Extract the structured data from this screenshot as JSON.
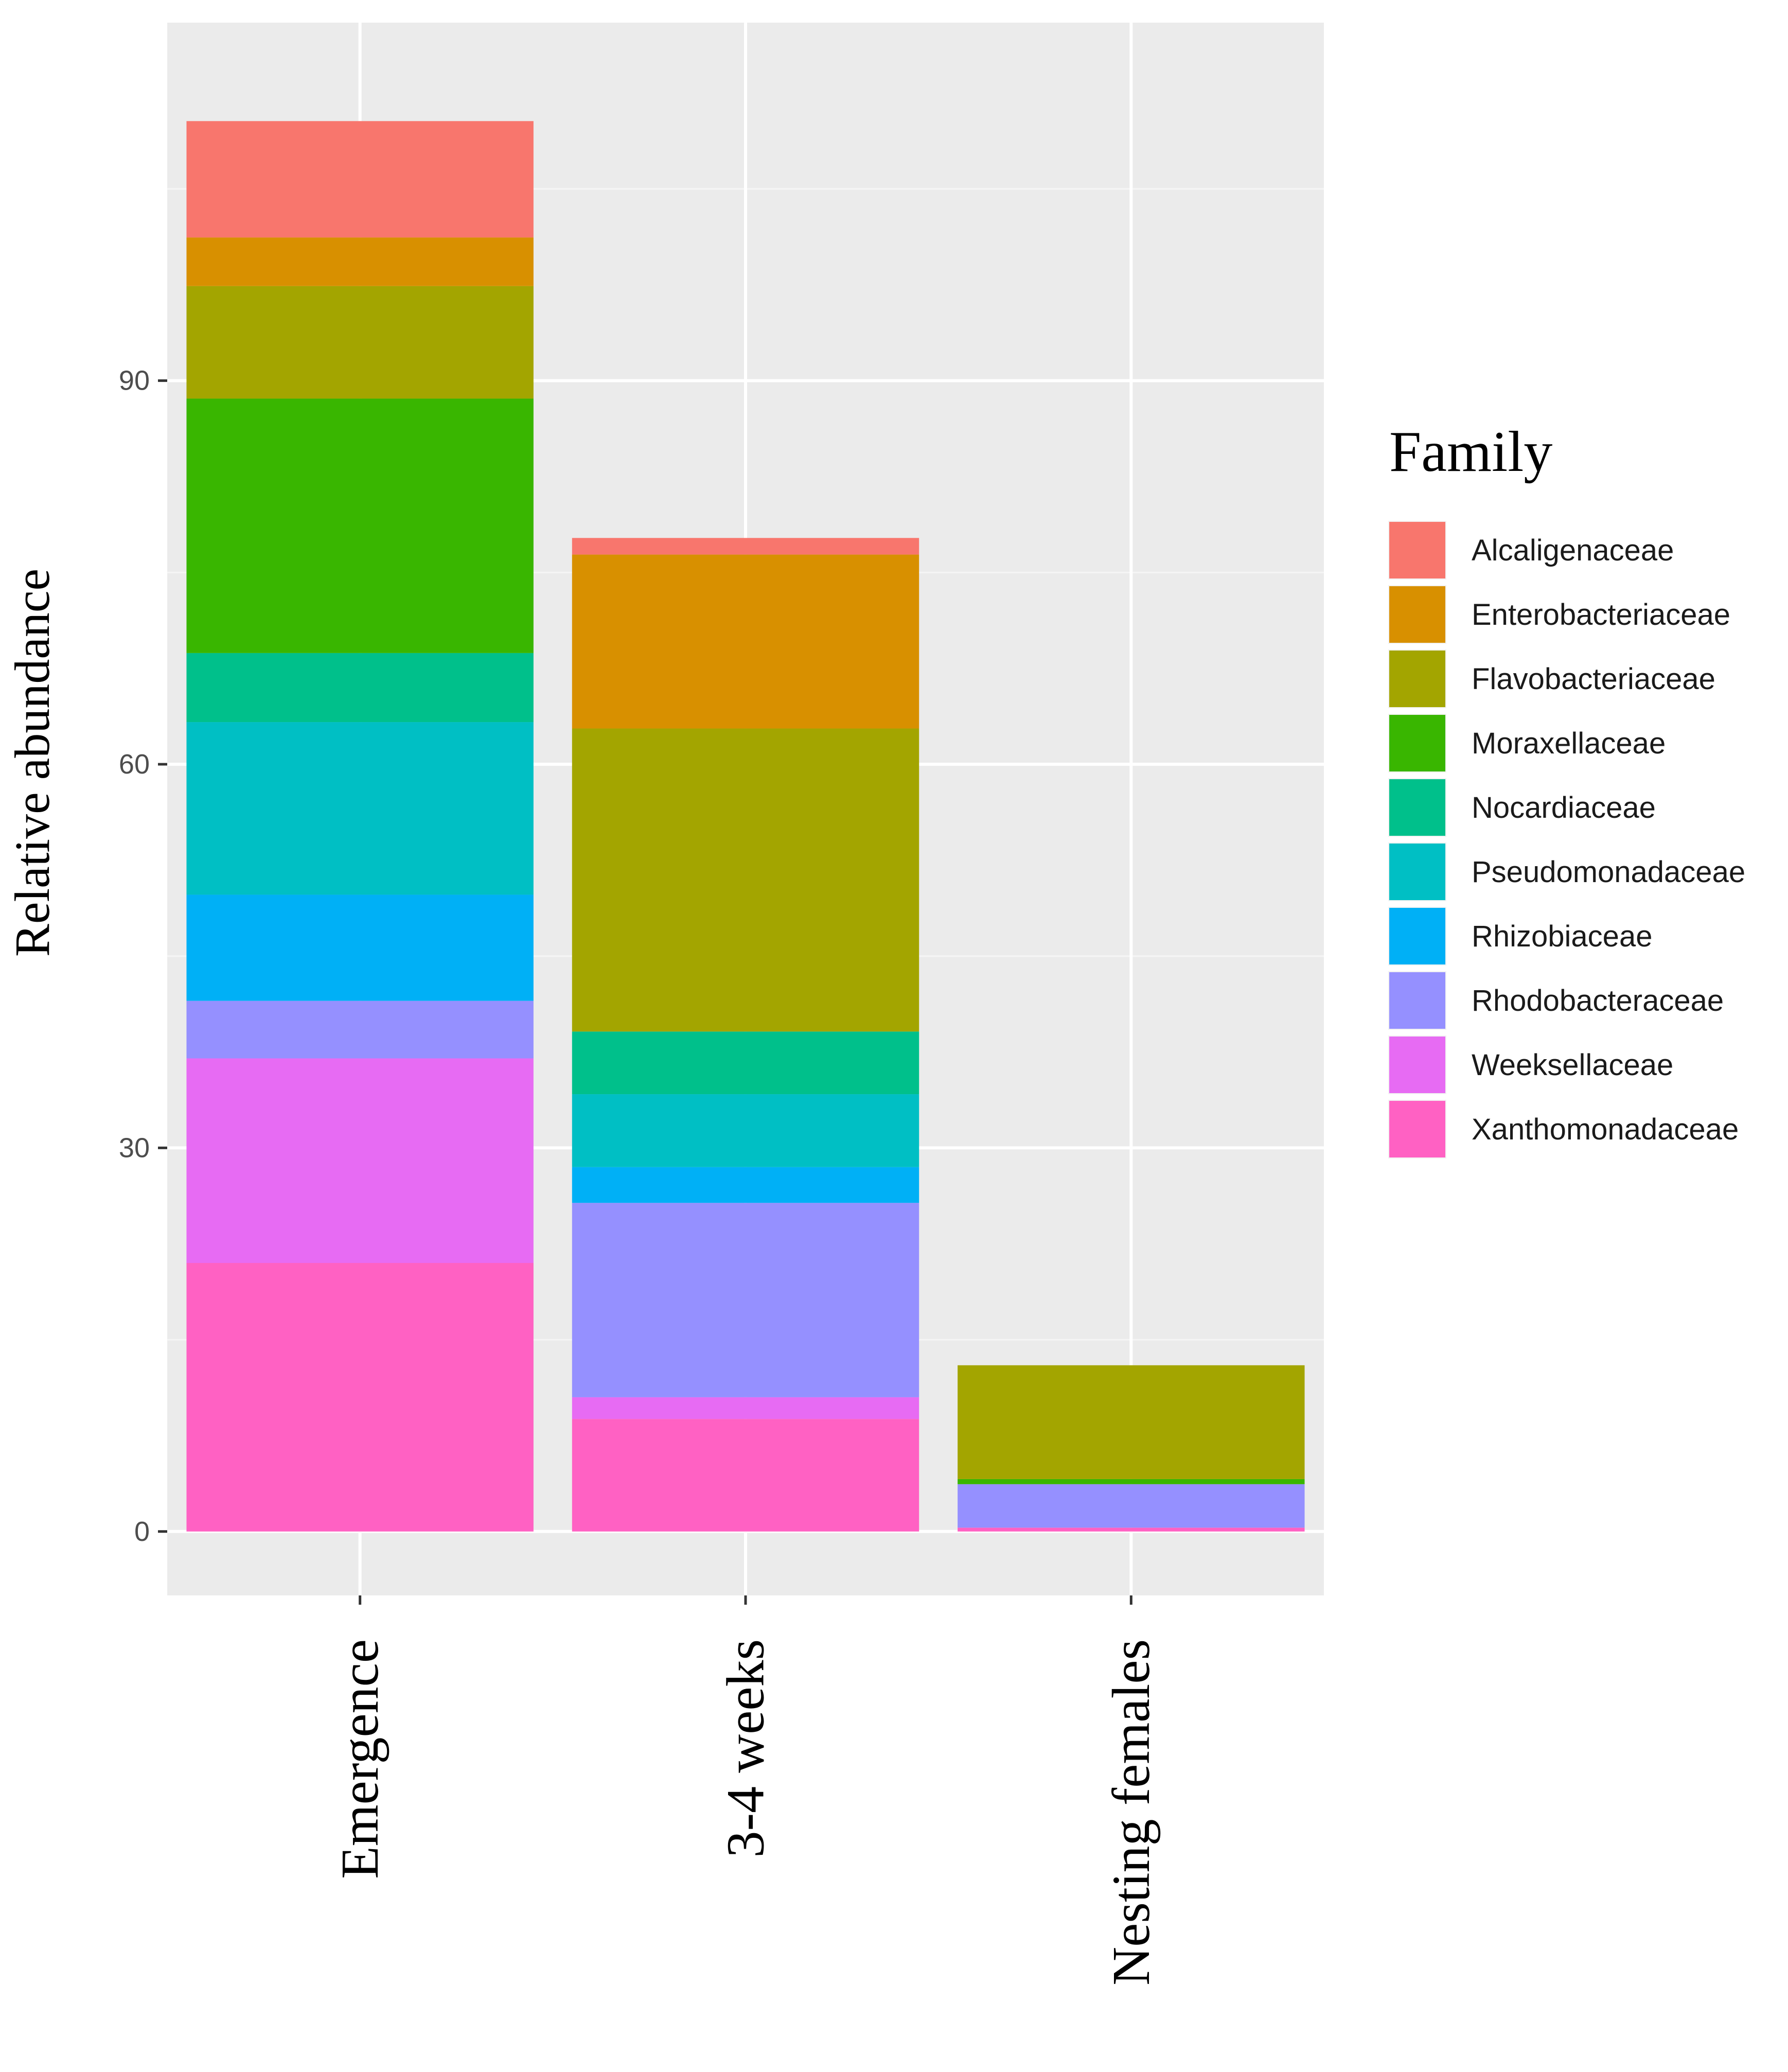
{
  "chart_data": {
    "type": "bar",
    "stacked": true,
    "title": "",
    "xlabel": "",
    "ylabel": "Relative abundance",
    "ylim": [
      -5,
      118
    ],
    "yticks": [
      0,
      30,
      60,
      90
    ],
    "ytick_labels": [
      "0",
      "30",
      "60",
      "90"
    ],
    "grid": true,
    "legend_position": "right",
    "categories": [
      "Emergence",
      "3-4 weeks",
      "Nesting females"
    ],
    "legend": {
      "title": "Family"
    },
    "series": [
      {
        "name": "Xanthomonadaceae",
        "color": "#FF61C3",
        "values": [
          21.0,
          8.8,
          0.3
        ]
      },
      {
        "name": "Weeksellaceae",
        "color": "#E76BF3",
        "values": [
          16.0,
          1.7,
          0.0
        ]
      },
      {
        "name": "Rhodobacteraceae",
        "color": "#9590FF",
        "values": [
          4.5,
          15.2,
          3.4
        ]
      },
      {
        "name": "Rhizobiaceae",
        "color": "#00B0F6",
        "values": [
          8.3,
          2.8,
          0.0
        ]
      },
      {
        "name": "Pseudomonadaceae",
        "color": "#00BFC4",
        "values": [
          13.5,
          5.7,
          0.0
        ]
      },
      {
        "name": "Nocardiaceae",
        "color": "#00C08B",
        "values": [
          5.4,
          4.9,
          0.0
        ]
      },
      {
        "name": "Moraxellaceae",
        "color": "#39B600",
        "values": [
          19.9,
          0.0,
          0.4
        ]
      },
      {
        "name": "Flavobacteriaceae",
        "color": "#A3A500",
        "values": [
          8.8,
          23.7,
          8.9
        ]
      },
      {
        "name": "Enterobacteriaceae",
        "color": "#D89000",
        "values": [
          3.8,
          13.6,
          0.0
        ]
      },
      {
        "name": "Alcaligenaceae",
        "color": "#F8766D",
        "values": [
          9.1,
          1.3,
          0.0
        ]
      }
    ],
    "legend_order": [
      "Alcaligenaceae",
      "Enterobacteriaceae",
      "Flavobacteriaceae",
      "Moraxellaceae",
      "Nocardiaceae",
      "Pseudomonadaceae",
      "Rhizobiaceae",
      "Rhodobacteraceae",
      "Weeksellaceae",
      "Xanthomonadaceae"
    ],
    "colors": {
      "panel_background": "#EBEBEB",
      "grid_major": "#FFFFFF",
      "grid_minor": "#F5F5F5",
      "tick_text": "#4D4D4D",
      "tick_mark": "#333333"
    }
  }
}
